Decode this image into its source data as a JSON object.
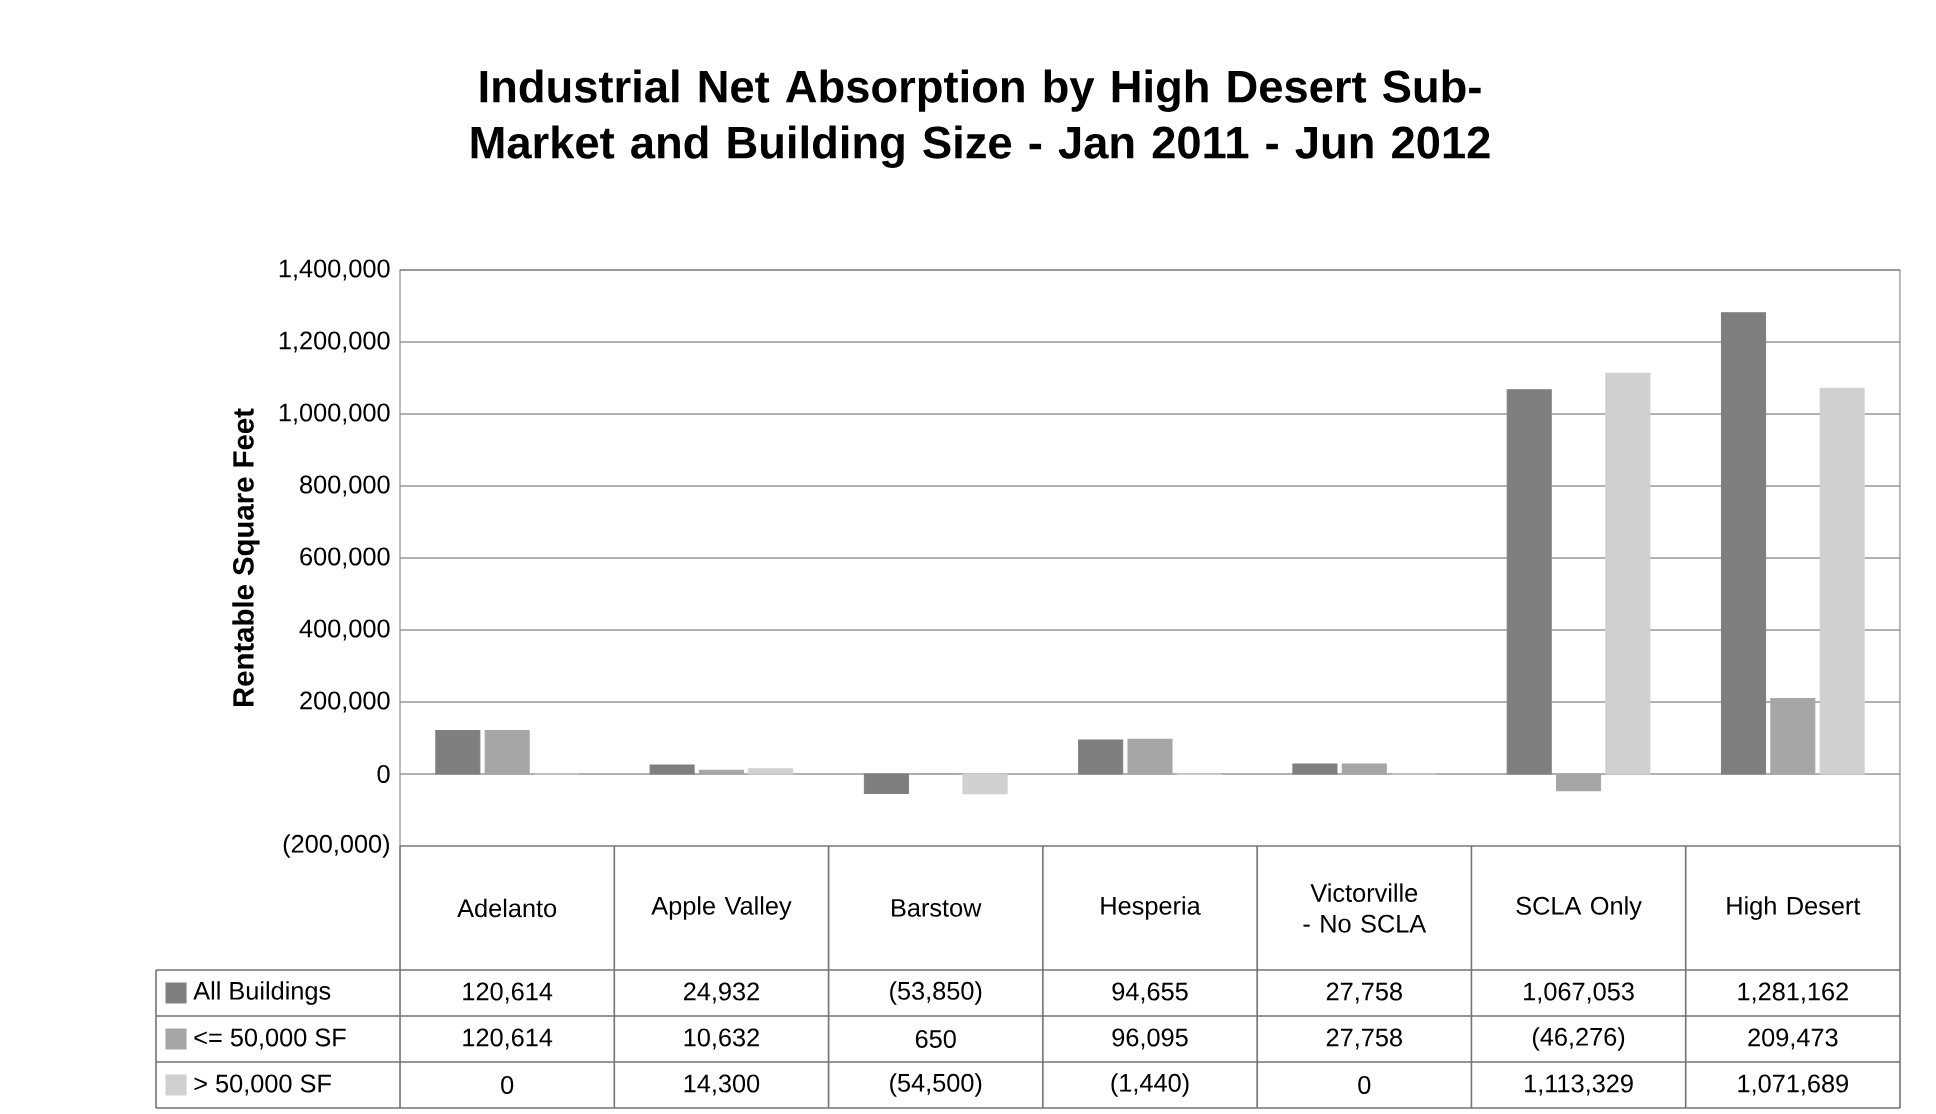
{
  "chart_data": {
    "type": "bar",
    "title": "Industrial Net Absorption by High Desert Sub-Market and Building Size - Jan 2011 - Jun 2012",
    "ylabel": "Rentable Square Feet",
    "categories": [
      "Adelanto",
      "Apple Valley",
      "Barstow",
      "Hesperia",
      "Victorville - No SCLA",
      "SCLA Only",
      "High Desert"
    ],
    "series": [
      {
        "name": "All Buildings",
        "color": "#7f7f7f",
        "values": [
          120614,
          24932,
          -53850,
          94655,
          27758,
          1067053,
          1281162
        ],
        "value_labels": [
          "120,614",
          "24,932",
          "(53,850)",
          "94,655",
          "27,758",
          "1,067,053",
          "1,281,162"
        ]
      },
      {
        "name": "<= 50,000 SF",
        "color": "#a6a6a6",
        "values": [
          120614,
          10632,
          650,
          96095,
          27758,
          -46276,
          209473
        ],
        "value_labels": [
          "120,614",
          "10,632",
          "650",
          "96,095",
          "27,758",
          "(46,276)",
          "209,473"
        ]
      },
      {
        "name": "> 50,000 SF",
        "color": "#d0d0d0",
        "values": [
          0,
          14300,
          -54500,
          -1440,
          0,
          1113329,
          1071689
        ],
        "value_labels": [
          "0",
          "14,300",
          "(54,500)",
          "(1,440)",
          "0",
          "1,113,329",
          "1,071,689"
        ]
      }
    ],
    "ylim": [
      -200000,
      1400000
    ],
    "yticks": [
      {
        "value": -200000,
        "label": "(200,000)"
      },
      {
        "value": 0,
        "label": "0"
      },
      {
        "value": 200000,
        "label": "200,000"
      },
      {
        "value": 400000,
        "label": "400,000"
      },
      {
        "value": 600000,
        "label": "600,000"
      },
      {
        "value": 800000,
        "label": "800,000"
      },
      {
        "value": 1000000,
        "label": "1,000,000"
      },
      {
        "value": 1200000,
        "label": "1,200,000"
      },
      {
        "value": 1400000,
        "label": "1,400,000"
      }
    ],
    "grid": "y",
    "legend": "bottom"
  }
}
